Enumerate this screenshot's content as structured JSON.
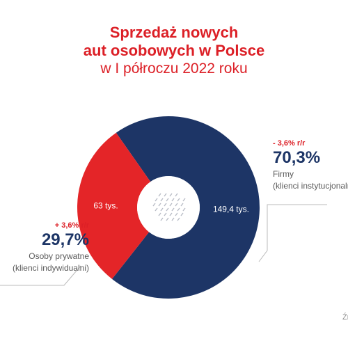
{
  "title": {
    "line1": "Sprzedaż nowych",
    "line2": "aut osobowych w Polsce",
    "line3": "w I półroczu 2022 roku"
  },
  "colors": {
    "title": "#dc1f26",
    "private": "#e42528",
    "firms": "#1d3566",
    "change": "#dc1f26",
    "percent": "#1d3566",
    "text": "#5b5b5b"
  },
  "chart_data": {
    "type": "pie",
    "variant": "donut",
    "series": [
      {
        "name": "Firmy (klienci instytucjonalni)",
        "value": 149.4,
        "value_label": "149,4 tys.",
        "share_label": "70,3%",
        "change_label": "- 3,6% r/r",
        "color": "#1d3566"
      },
      {
        "name": "Osoby prywatne (klienci indywidualni)",
        "value": 63,
        "value_label": "63 tys.",
        "share_label": "29,7%",
        "change_label": "+ 3,6% r/r",
        "color": "#e42528"
      }
    ]
  },
  "callouts": {
    "firms": {
      "change": "- 3,6% r/r",
      "percent": "70,3%",
      "line1": "Firmy",
      "line2": "(klienci instytucjonalni)"
    },
    "private": {
      "change": "+ 3,6% r/r",
      "percent": "29,7%",
      "line1": "Osoby prywatne",
      "line2": "(klienci indywidualni)"
    }
  },
  "source": "Źródło"
}
